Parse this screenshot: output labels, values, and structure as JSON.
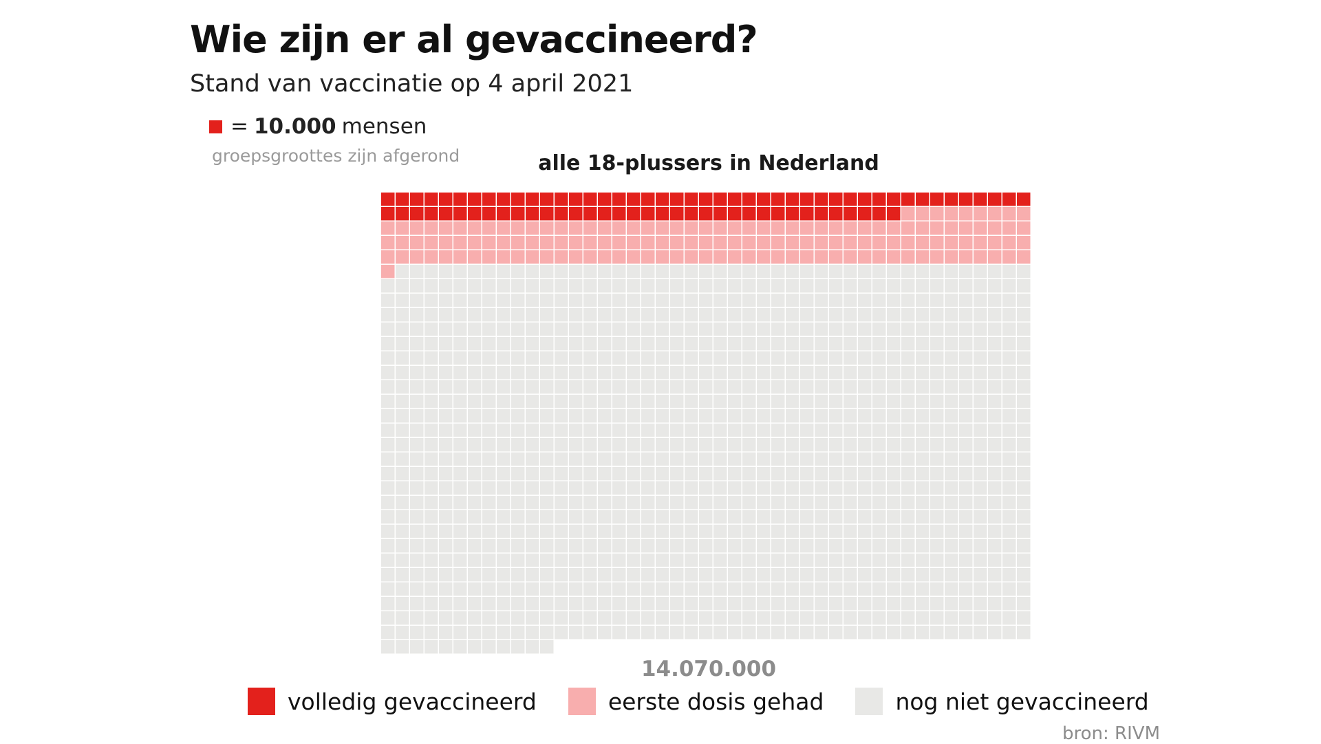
{
  "title": "Wie zijn er al gevaccineerd?",
  "subtitle": "Stand van vaccinatie op 4 april 2021",
  "unit": {
    "prefix": "=",
    "value": "10.000",
    "suffix": "mensen",
    "color": "#e3211c"
  },
  "note": "groepsgroottes zijn afgerond",
  "source": "bron: RIVM",
  "colors": {
    "fully": "#e3211c",
    "first_dose": "#f8aeae",
    "not_vaccinated": "#e8e8e6"
  },
  "chart_data": {
    "type": "waffle",
    "title": "alle 18-plussers in Nederland",
    "total_label": "14.070.000",
    "columns": 45,
    "people_per_square": 10000,
    "total_squares": 1407,
    "categories": [
      "volledig gevaccineerd",
      "eerste dosis gehad",
      "nog niet gevaccineerd"
    ],
    "values": [
      81,
      145,
      1181
    ],
    "legend_position": "bottom"
  }
}
